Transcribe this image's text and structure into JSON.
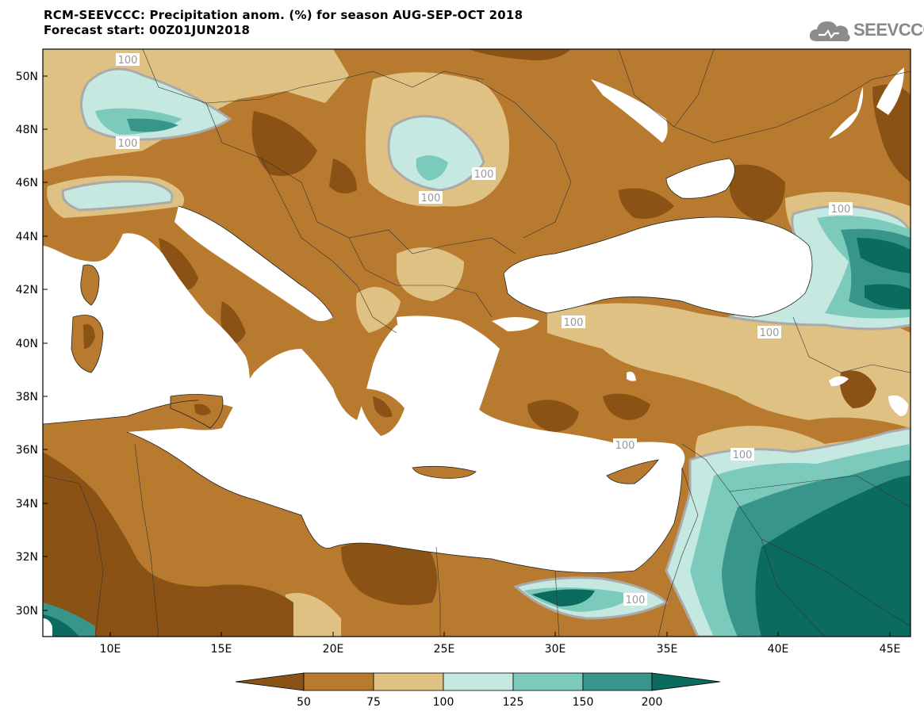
{
  "title": {
    "line1": "RCM-SEEVCCC: Precipitation anom. (%) for season AUG-SEP-OCT 2018",
    "line2": "Forecast start: 00Z01JUN2018"
  },
  "logo": {
    "text": "SEEVCCC",
    "icon": "cloud-icon"
  },
  "map": {
    "lat_labels": [
      "50N",
      "48N",
      "46N",
      "44N",
      "42N",
      "40N",
      "38N",
      "36N",
      "34N",
      "32N",
      "30N"
    ],
    "lon_labels": [
      "10E",
      "15E",
      "20E",
      "25E",
      "30E",
      "35E",
      "40E",
      "45E"
    ],
    "contour_label": "100",
    "colors": {
      "lt50": "#8a5214",
      "b50_75": "#b87a2e",
      "b75_100": "#dfc283",
      "b100_125": "#c5e9e1",
      "b125_150": "#7ccabb",
      "b150_200": "#379689",
      "gt200": "#0b6b5f",
      "sea": "#ffffff",
      "contour": "#aaaaaa"
    }
  },
  "colorbar": {
    "labels": [
      "50",
      "75",
      "100",
      "125",
      "150",
      "200"
    ]
  }
}
